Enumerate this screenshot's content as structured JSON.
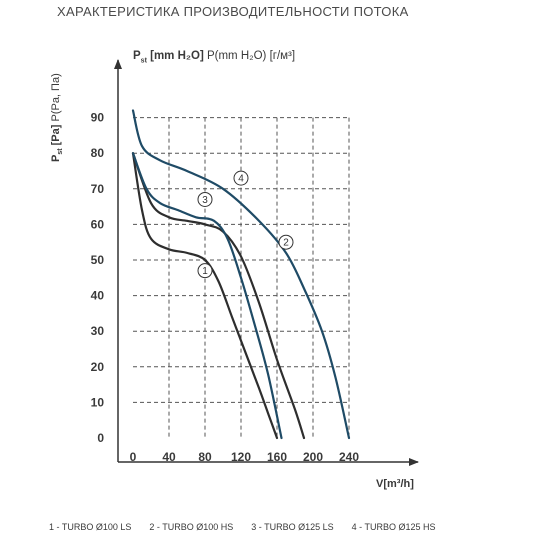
{
  "page_title": "ХАРАКТЕРИСТИКА ПРОИЗВОДИТЕЛЬНОСТИ ПОТОКА",
  "colors": {
    "grid": "#555555",
    "axis": "#333333",
    "blue_curve": "#1f4b66",
    "dark_curve": "#2e2e2e"
  },
  "chart_data": {
    "type": "line",
    "y_axis_label": {
      "main": "P",
      "sub": "st",
      "bold_unit": "[Pa]",
      "rest": " P(Pa, Па)"
    },
    "unit_label": {
      "main": "P",
      "sub": "st",
      "bold_unit": "[mm H₂O]",
      "rest": " P(mm H₂O) [г/м³]"
    },
    "xlabel": "V[m³/h]",
    "xlim": [
      0,
      240
    ],
    "ylim": [
      0,
      90
    ],
    "x_ticks": [
      0,
      40,
      80,
      120,
      160,
      200,
      240
    ],
    "y_ticks": [
      0,
      10,
      20,
      30,
      40,
      50,
      60,
      70,
      80,
      90
    ],
    "grid": true,
    "series": [
      {
        "name": "1",
        "color": "#2e2e2e",
        "x": [
          0,
          10,
          20,
          40,
          60,
          80,
          95,
          110,
          125,
          140,
          150,
          160
        ],
        "y": [
          80,
          64,
          56,
          53,
          52,
          50,
          44,
          34,
          24,
          14,
          7,
          0
        ]
      },
      {
        "name": "2",
        "color": "#2e2e2e",
        "x": [
          0,
          20,
          40,
          60,
          80,
          100,
          120,
          140,
          160,
          180,
          190
        ],
        "y": [
          80,
          66,
          62,
          61,
          60,
          58,
          51,
          38,
          22,
          8,
          0
        ]
      },
      {
        "name": "3",
        "color": "#1f4b66",
        "x": [
          0,
          15,
          30,
          50,
          70,
          90,
          105,
          120,
          135,
          150,
          165
        ],
        "y": [
          80,
          70,
          66,
          64,
          62,
          61,
          56,
          45,
          32,
          18,
          0
        ]
      },
      {
        "name": "4",
        "color": "#1f4b66",
        "x": [
          0,
          10,
          30,
          60,
          100,
          140,
          170,
          190,
          210,
          225,
          240
        ],
        "y": [
          92,
          82,
          78,
          75,
          70,
          61,
          52,
          42,
          30,
          17,
          0
        ]
      }
    ],
    "curve_labels": [
      "1",
      "2",
      "3",
      "4"
    ],
    "legend": [
      "1 - TURBO Ø100 LS",
      "2 - TURBO Ø100 HS",
      "3 - TURBO Ø125 LS",
      "4 - TURBO Ø125 HS"
    ]
  }
}
